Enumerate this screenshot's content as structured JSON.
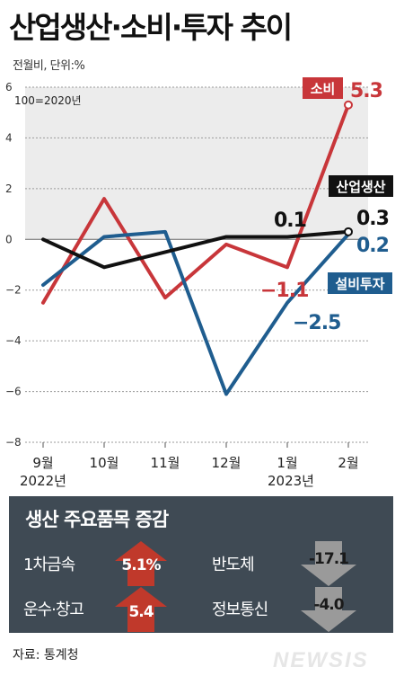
{
  "header": {
    "title": "산업생산·소비·투자 추이",
    "unit": "전월비, 단위:%",
    "base_note": "100=2020년"
  },
  "chart_data": {
    "type": "line",
    "categories": [
      "9월",
      "10월",
      "11월",
      "12월",
      "1월",
      "2월"
    ],
    "year_labels": [
      "2022년",
      "2023년"
    ],
    "ylim": [
      -8,
      6
    ],
    "yticks": [
      6,
      4,
      2,
      0,
      -2,
      -4,
      -6,
      -8
    ],
    "series": [
      {
        "name": "소비",
        "color": "#c8363a",
        "values": [
          -2.5,
          1.6,
          -2.3,
          -0.2,
          -1.1,
          5.3
        ]
      },
      {
        "name": "설비투자",
        "color": "#1f5d8f",
        "values": [
          -1.8,
          0.1,
          0.3,
          -6.1,
          -2.5,
          0.2
        ]
      },
      {
        "name": "산업생산",
        "color": "#111111",
        "values": [
          0.0,
          -1.1,
          -0.5,
          0.1,
          0.1,
          0.3
        ]
      }
    ],
    "annotations": [
      {
        "series": "소비",
        "text": "5.3"
      },
      {
        "series": "소비",
        "text": "-1.1"
      },
      {
        "series": "산업생산",
        "text": "0.3"
      },
      {
        "series": "산업생산",
        "text": "0.1"
      },
      {
        "series": "설비투자",
        "text": "0.2"
      },
      {
        "series": "설비투자",
        "text": "-2.5"
      }
    ]
  },
  "breakdown": {
    "title": "생산 주요품목 증감",
    "items": [
      {
        "name": "1차금속",
        "value": "5.1%",
        "direction": "up"
      },
      {
        "name": "반도체",
        "value": "-17.1",
        "direction": "down"
      },
      {
        "name": "운수·창고",
        "value": "5.4",
        "direction": "up"
      },
      {
        "name": "정보통신",
        "value": "-4.0",
        "direction": "down"
      }
    ],
    "colors": {
      "up": "#c0392b",
      "down": "#9a9a9a"
    }
  },
  "footer": {
    "source": "자료: 통계청",
    "logo": "NEWSIS"
  }
}
